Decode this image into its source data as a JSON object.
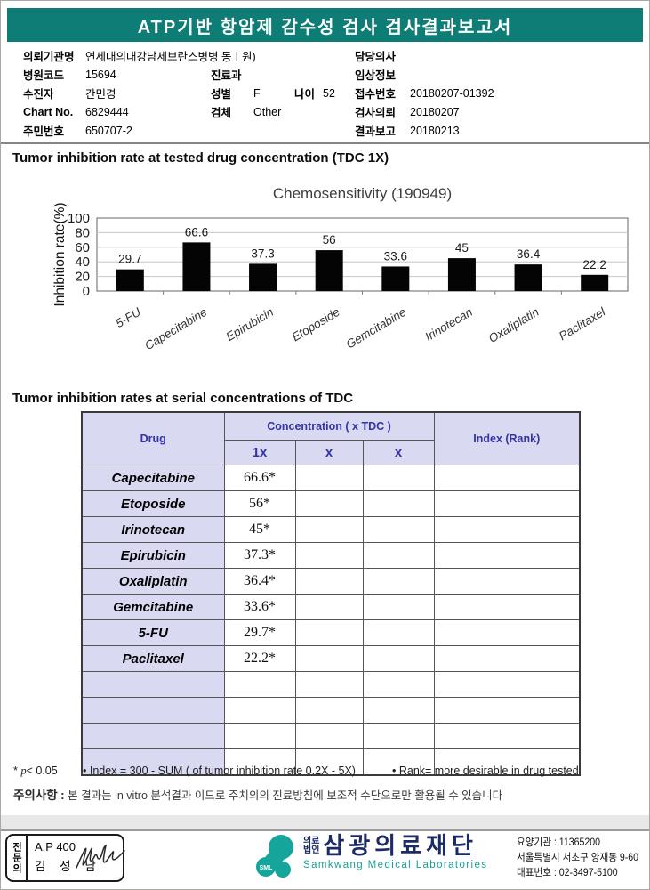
{
  "header": {
    "title": "ATP기반 항암제 감수성 검사 검사결과보고서"
  },
  "info": {
    "left": [
      {
        "label": "의뢰기관명",
        "value": "연세대의대강남세브란스병병 동ㅣ원)"
      },
      {
        "label": "병원코드",
        "value": "15694"
      },
      {
        "label": "수진자",
        "value": "간민경"
      },
      {
        "label": "Chart No.",
        "value": "6829444"
      },
      {
        "label": "주민번호",
        "value": "650707-2"
      }
    ],
    "mid": [
      {
        "label": "진료과",
        "value": ""
      },
      {
        "label": "성별",
        "value": "F",
        "label2": "나이",
        "value2": "52"
      },
      {
        "label": "검체",
        "value": "Other"
      }
    ],
    "right": [
      {
        "label": "담당의사",
        "value": ""
      },
      {
        "label": "임상정보",
        "value": ""
      },
      {
        "label": "접수번호",
        "value": "20180207-01392"
      },
      {
        "label": "검사의뢰",
        "value": "20180207"
      },
      {
        "label": "결과보고",
        "value": "20180213"
      }
    ]
  },
  "sections": {
    "chart_heading": "Tumor inhibition rate at tested drug concentration (TDC 1X)",
    "table_heading": "Tumor inhibition rates at serial concentrations of TDC"
  },
  "chart_data": {
    "type": "bar",
    "title": "Chemosensitivity (190949)",
    "ylabel": "Inhibition rate(%)",
    "categories": [
      "5-FU",
      "Capecitabine",
      "Epirubicin",
      "Etoposide",
      "Gemcitabine",
      "Irinotecan",
      "Oxaliplatin",
      "Paclitaxel"
    ],
    "values": [
      29.7,
      66.6,
      37.3,
      56,
      33.6,
      45,
      36.4,
      22.2
    ],
    "ylim": [
      0,
      100
    ],
    "yticks": [
      0,
      20,
      40,
      60,
      80,
      100
    ],
    "grid": true,
    "legend": "none",
    "bar_color": "#040404"
  },
  "table": {
    "header": {
      "drug": "Drug",
      "concentration": "Concentration ( x TDC )",
      "index": "Index (Rank)",
      "sub": [
        "1x",
        "x",
        "x"
      ]
    },
    "rows": [
      {
        "drug": "Capecitabine",
        "c1": "66.6*"
      },
      {
        "drug": "Etoposide",
        "c1": "56*"
      },
      {
        "drug": "Irinotecan",
        "c1": "45*"
      },
      {
        "drug": "Epirubicin",
        "c1": "37.3*"
      },
      {
        "drug": "Oxaliplatin",
        "c1": "36.4*"
      },
      {
        "drug": "Gemcitabine",
        "c1": "33.6*"
      },
      {
        "drug": "5-FU",
        "c1": "29.7*"
      },
      {
        "drug": "Paclitaxel",
        "c1": "22.2*"
      }
    ],
    "empty_row_count": 4
  },
  "notes": {
    "sig_star": "*",
    "sig_p": "p",
    "sig_rest": "< 0.05",
    "index_note": "• Index = 300 - SUM ( of tumor inhibition rate 0.2X  -  5X)",
    "rank_note": "• Rank= more desirable in drug tested"
  },
  "caution": {
    "label": "주의사항",
    "sep": ":",
    "text": "본 결과는 in vitro 분석결과 이므로 주치의의 진료방침에 보조적 수단으로만 활용될 수 있습니다"
  },
  "footer": {
    "stamp": {
      "vertical": "전문의",
      "line1": "A.P 400",
      "line2": "김 성 남"
    },
    "logo": {
      "sml": "SML",
      "pre1": "의료",
      "pre2": "법인",
      "name": "삼광의료재단",
      "english": "Samkwang Medical Laboratories"
    },
    "contact": {
      "line1": "요양기관 : 11365200",
      "line2": "서울특별시 서초구 양재동 9-60",
      "line3": "대표번호 : 02-3497-5100"
    }
  },
  "colors": {
    "title_bar_bg": "#0e7d75",
    "table_header_bg": "#d9d9f2",
    "table_header_text": "#3434a4",
    "logo_teal": "#16a59a",
    "logo_navy": "#1c2b66",
    "bar_fill": "#040404"
  }
}
